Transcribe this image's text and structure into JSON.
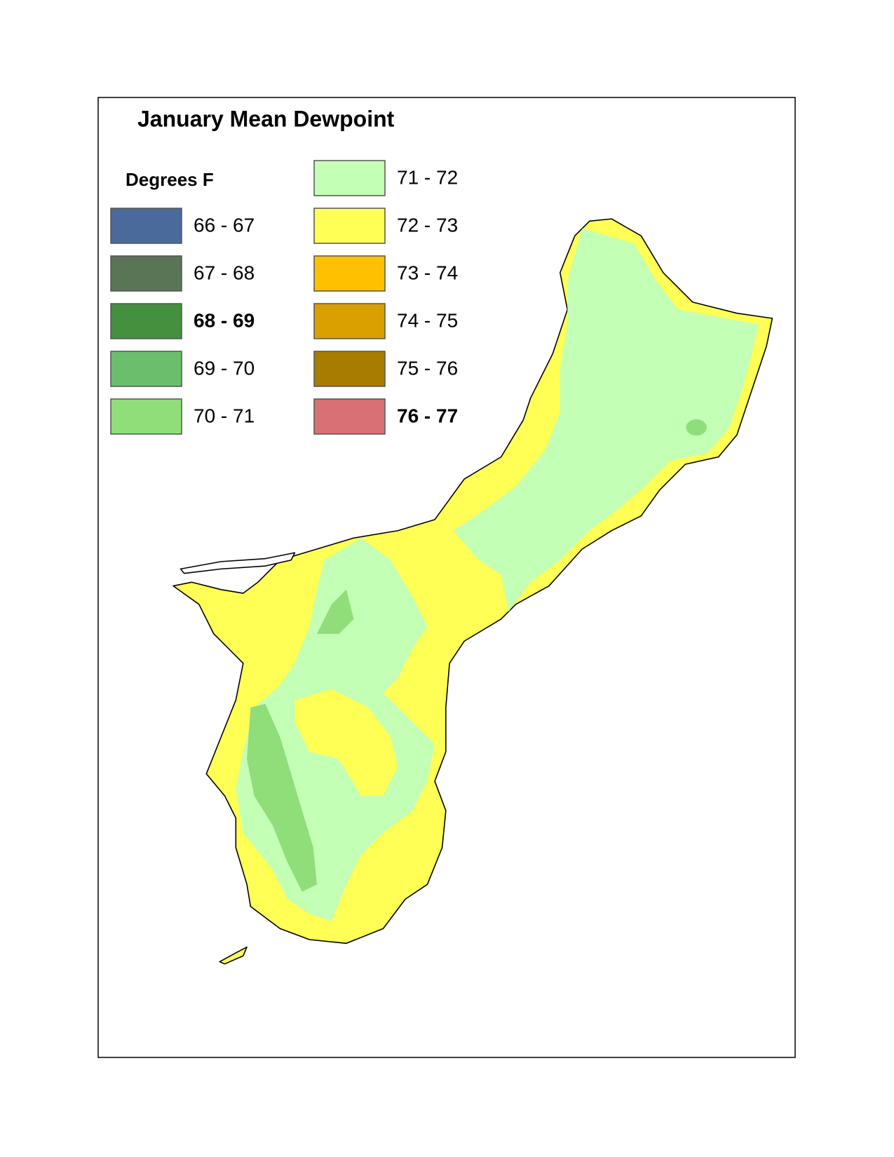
{
  "title": "January Mean Dewpoint",
  "legend": {
    "title": "Degrees F",
    "items": [
      {
        "label": "66 - 67",
        "color": "#4a6a9c"
      },
      {
        "label": "67 - 68",
        "color": "#5a7556"
      },
      {
        "label": "68 - 69",
        "color": "#44903f",
        "bold": true
      },
      {
        "label": "69 - 70",
        "color": "#6bbf6c"
      },
      {
        "label": "70 - 71",
        "color": "#8fde7a"
      },
      {
        "label": "71 - 72",
        "color": "#c3ffb4"
      },
      {
        "label": "72 - 73",
        "color": "#ffff55"
      },
      {
        "label": "73 - 74",
        "color": "#ffc000"
      },
      {
        "label": "74 - 75",
        "color": "#d9a000"
      },
      {
        "label": "75 - 76",
        "color": "#a87c00"
      },
      {
        "label": "76 - 77",
        "color": "#d87075",
        "bold": true
      }
    ]
  }
}
